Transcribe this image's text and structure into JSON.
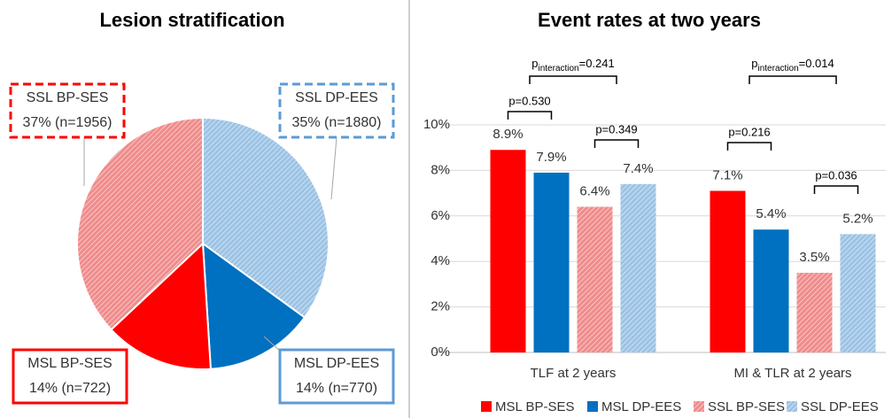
{
  "chart_data": [
    {
      "type": "pie",
      "title": "Lesion stratification",
      "categories": [
        "SSL DP-EES",
        "MSL DP-EES",
        "MSL BP-SES",
        "SSL BP-SES"
      ],
      "values": [
        35,
        14,
        14,
        37
      ],
      "value_labels": [
        "35% (n=1880)",
        "14% (n=770)",
        "14% (n=722)",
        "37% (n=1956)"
      ],
      "colors": [
        "#9cc3e5",
        "#0070c0",
        "#ff0000",
        "#f08c8c"
      ],
      "patterns": [
        "hatched",
        "solid",
        "solid",
        "hatched"
      ]
    },
    {
      "type": "bar",
      "title": "Event rates at two years",
      "categories": [
        "TLF at 2 years",
        "MI & TLR at 2 years"
      ],
      "series": [
        {
          "name": "MSL BP-SES",
          "color": "#ff0000",
          "pattern": "solid",
          "values": [
            8.9,
            7.1
          ],
          "value_labels": [
            "8.9%",
            "7.1%"
          ]
        },
        {
          "name": "MSL DP-EES",
          "color": "#0070c0",
          "pattern": "solid",
          "values": [
            7.9,
            5.4
          ],
          "value_labels": [
            "7.9%",
            "5.4%"
          ]
        },
        {
          "name": "SSL BP-SES",
          "color": "#f08c8c",
          "pattern": "hatched",
          "values": [
            6.4,
            3.5
          ],
          "value_labels": [
            "6.4%",
            "3.5%"
          ]
        },
        {
          "name": "SSL DP-EES",
          "color": "#9cc3e5",
          "pattern": "hatched",
          "values": [
            7.4,
            5.2
          ],
          "value_labels": [
            "7.4%",
            "5.2%"
          ]
        }
      ],
      "ylim": [
        0,
        10
      ],
      "yticks": [
        {
          "value": 0,
          "label": "0%"
        },
        {
          "value": 2,
          "label": "2%"
        },
        {
          "value": 4,
          "label": "4%"
        },
        {
          "value": 6,
          "label": "6%"
        },
        {
          "value": 8,
          "label": "8%"
        },
        {
          "value": 10,
          "label": "10%"
        }
      ],
      "grid": true,
      "legend": "bottom",
      "annotations": [
        "p=0.530",
        "p=0.349",
        "p=0.216",
        "p=0.036"
      ],
      "interaction_annotations": [
        [
          "p",
          "interaction",
          "=0.241"
        ],
        [
          "p",
          "interaction",
          "=0.014"
        ]
      ]
    }
  ]
}
